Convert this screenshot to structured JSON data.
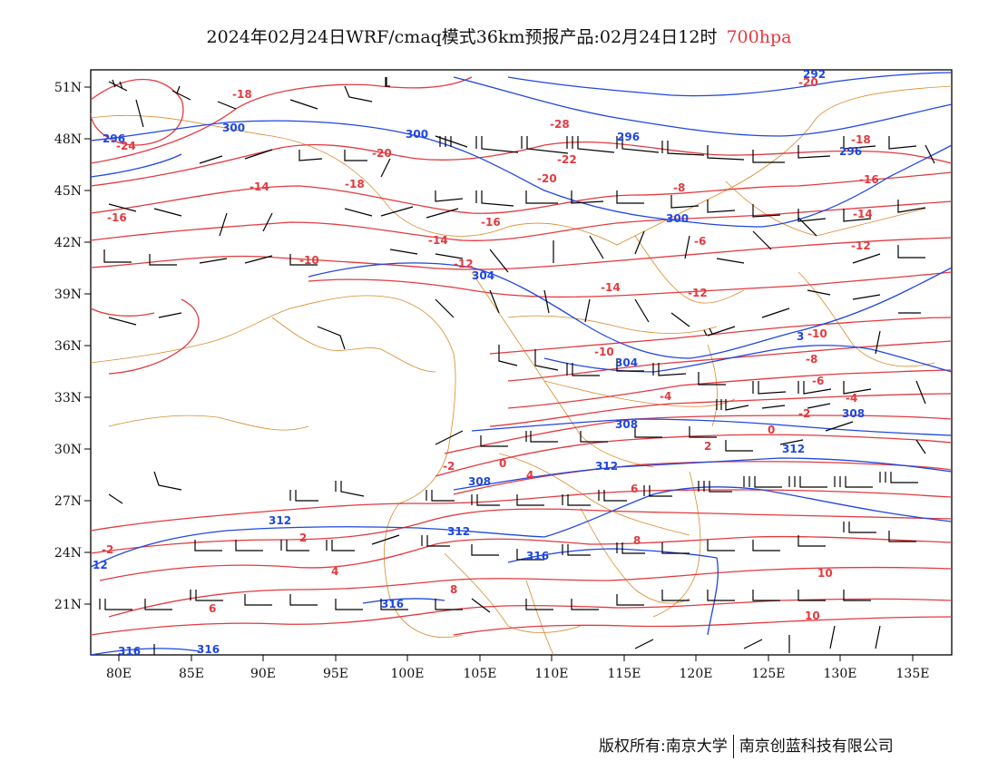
{
  "header": {
    "title": "2024年02月24日WRF/cmaq模式36km预报产品:02月24日12时",
    "level": "700hpa"
  },
  "axes": {
    "lat_labels": [
      "51N",
      "48N",
      "45N",
      "42N",
      "39N",
      "36N",
      "33N",
      "30N",
      "27N",
      "24N",
      "21N"
    ],
    "lon_labels": [
      "80E",
      "85E",
      "90E",
      "95E",
      "100E",
      "105E",
      "110E",
      "115E",
      "120E",
      "125E",
      "130E",
      "135E"
    ]
  },
  "contours": {
    "temperature_labels": [
      "-18",
      "-24",
      "-20",
      "-14",
      "-16",
      "-18",
      "-20",
      "-22",
      "-28",
      "-16",
      "-14",
      "-10",
      "-12",
      "-14",
      "-12",
      "-10",
      "-8",
      "-6",
      "-4",
      "-2",
      "0",
      "2",
      "4",
      "6",
      "8",
      "10",
      "-20",
      "-18",
      "-16",
      "-14",
      "-12",
      "-10",
      "-8",
      "-6",
      "-4",
      "-2",
      "0",
      "-2",
      "2",
      "4",
      "6",
      "8",
      "10"
    ],
    "height_labels": [
      "300",
      "296",
      "300",
      "296",
      "300",
      "304",
      "304",
      "308",
      "308",
      "312",
      "312",
      "312",
      "312",
      "316",
      "316",
      "316",
      "316",
      "296",
      "292",
      "308",
      "12",
      "3"
    ]
  },
  "colors": {
    "temperature": "#e23a3f",
    "height": "#1f47e0",
    "borders": "#d98a2b",
    "wind": "#000000"
  },
  "footer": {
    "copyright_left": "版权所有:南京大学",
    "copyright_right": "南京创蓝科技有限公司"
  }
}
